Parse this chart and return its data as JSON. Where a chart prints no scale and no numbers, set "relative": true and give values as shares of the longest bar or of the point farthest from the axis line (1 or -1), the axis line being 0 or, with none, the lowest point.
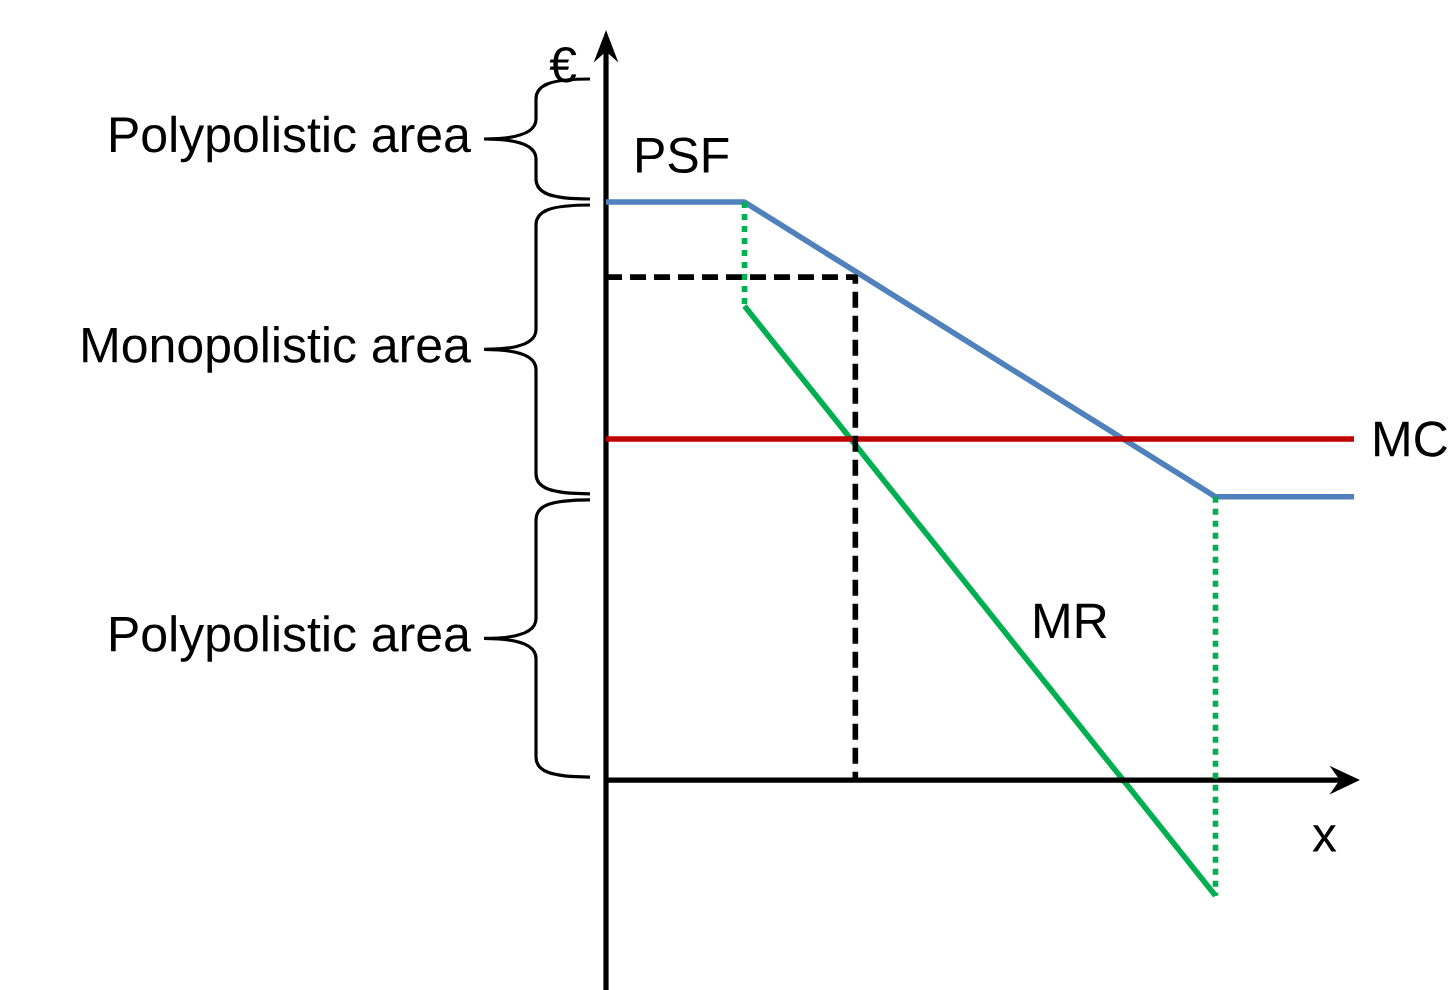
{
  "chart_data": {
    "type": "line",
    "relative": true,
    "xlabel": "x",
    "ylabel": "€",
    "categories": [
      null,
      null,
      null,
      null,
      null,
      null,
      null,
      null,
      null,
      null,
      null,
      null,
      null,
      null,
      null,
      null,
      null,
      null,
      null,
      null,
      null,
      null,
      null,
      null,
      null,
      null,
      null,
      null
    ],
    "series": [
      {
        "name": "PSF",
        "color": "#4f81bd",
        "values": [
          1,
          1,
          1,
          1,
          1,
          1,
          0.97,
          0.94,
          0.91,
          0.88,
          0.85,
          0.82,
          0.79,
          0.76,
          0.73,
          0.7,
          0.67,
          0.64,
          0.61,
          0.58,
          0.55,
          0.52,
          0.49,
          0.49,
          0.49,
          0.49,
          0.49,
          0.49
        ]
      },
      {
        "name": "MR",
        "color": "#00b050",
        "values": [
          null,
          null,
          null,
          null,
          null,
          0.82,
          0.76,
          0.7,
          0.64,
          0.58,
          0.52,
          0.46,
          0.4,
          0.34,
          0.28,
          0.22,
          0.16,
          0.1,
          0.04,
          -0.02,
          -0.08,
          -0.14,
          -0.2,
          null,
          null,
          null,
          null,
          null
        ]
      },
      {
        "name": "MC",
        "color": "#c00000",
        "values": [
          0.59,
          0.59,
          0.59,
          0.59,
          0.59,
          0.59,
          0.59,
          0.59,
          0.59,
          0.59,
          0.59,
          0.59,
          0.59,
          0.59,
          0.59,
          0.59,
          0.59,
          0.59,
          0.59,
          0.59,
          0.59,
          0.59,
          0.59,
          0.59,
          0.59,
          0.59,
          0.59,
          0.59
        ]
      },
      {
        "type": "step",
        "color": "#000000",
        "line_style": "dashed",
        "values": [
          0.87,
          0.87,
          0.87,
          0.87,
          0.87,
          0.87,
          0.87,
          0.87,
          0.87,
          0,
          null,
          null,
          null,
          null,
          null,
          null,
          null,
          null,
          null,
          null,
          null,
          null,
          null,
          null,
          null,
          null,
          null,
          null
        ]
      }
    ],
    "annotations": [
      "Polypolistic area",
      "Monopolistic area",
      "Polypolistic area"
    ]
  }
}
